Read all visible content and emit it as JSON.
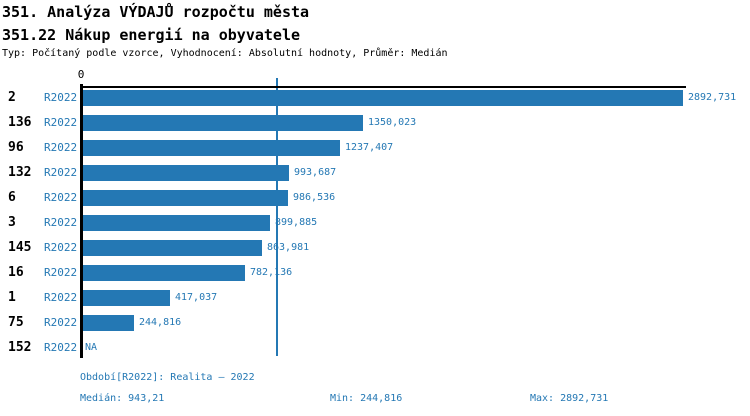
{
  "header": {
    "title": "351. Analýza VÝDAJŮ rozpočtu města",
    "subtitle": "351.22 Nákup energií na obyvatele",
    "meta": "Typ: Počítaný podle vzorce, Vyhodnocení: Absolutní hodnoty, Průměr: Medián"
  },
  "chart_data": {
    "type": "bar",
    "orientation": "horizontal",
    "title": "351.22 Nákup energií na obyvatele",
    "axis_zero_label": "0",
    "xlim": [
      0,
      2923
    ],
    "grid": false,
    "period_label": "R2022",
    "categories": [
      "2",
      "136",
      "96",
      "132",
      "6",
      "3",
      "145",
      "16",
      "1",
      "75",
      "152"
    ],
    "values": [
      2892.731,
      1350.023,
      1237.407,
      993.687,
      986.536,
      899.885,
      863.981,
      782.136,
      417.037,
      244.816,
      null
    ],
    "value_labels": [
      "2892,731",
      "1350,023",
      "1237,407",
      "993,687",
      "986,536",
      "899,885",
      "863,981",
      "782,136",
      "417,037",
      "244,816",
      "NA"
    ],
    "median_value": 943.21,
    "min_value": 244.816,
    "max_value": 2892.731,
    "bar_color": "#2478b4",
    "median_line_color": "#2478b4",
    "axis_color": "#000000",
    "label_color": "#2478b4"
  },
  "footer": {
    "period": "Období[R2022]: Realita – 2022",
    "median": "Medián: 943,21",
    "min": "Min: 244,816",
    "max": "Max: 2892,731"
  }
}
